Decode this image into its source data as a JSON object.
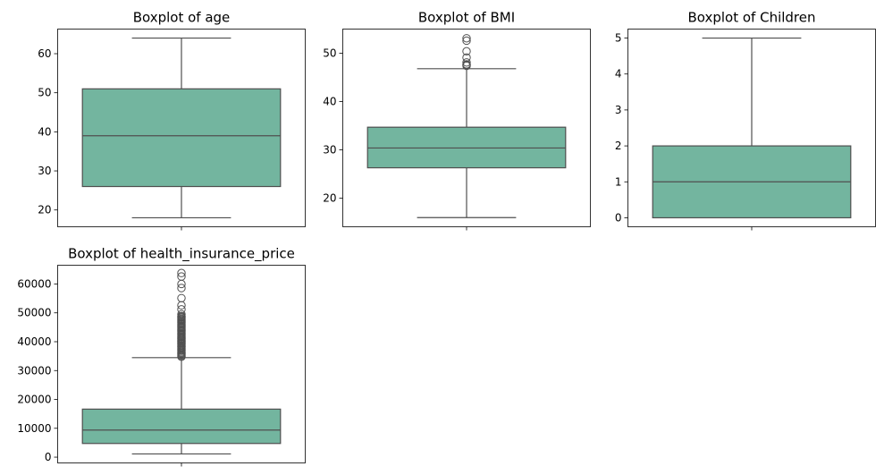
{
  "style": {
    "box_fill": "#73b59f",
    "line_color": "#4f4f4f",
    "axes_color": "#000000",
    "background": "#ffffff"
  },
  "chart_data": [
    {
      "type": "boxplot",
      "title": "Boxplot of age",
      "xlabel": "",
      "ylabel": "",
      "ylim": [
        15.7,
        66.3
      ],
      "yticks": [
        20,
        30,
        40,
        50,
        60
      ],
      "grid": false,
      "box": {
        "whisker_low": 18,
        "q1": 26,
        "median": 39,
        "q3": 51,
        "whisker_high": 64
      },
      "outliers": []
    },
    {
      "type": "boxplot",
      "title": "Boxplot of BMI",
      "xlabel": "",
      "ylabel": "",
      "ylim": [
        14.1,
        55.0
      ],
      "yticks": [
        20,
        30,
        40,
        50
      ],
      "grid": false,
      "box": {
        "whisker_low": 16.0,
        "q1": 26.3,
        "median": 30.4,
        "q3": 34.7,
        "whisker_high": 46.8
      },
      "outliers": [
        47.4,
        47.6,
        47.7,
        48.1,
        49.1,
        50.4,
        52.6,
        53.1
      ]
    },
    {
      "type": "boxplot",
      "title": "Boxplot of Children",
      "xlabel": "",
      "ylabel": "",
      "ylim": [
        -0.25,
        5.25
      ],
      "yticks": [
        0,
        1,
        2,
        3,
        4,
        5
      ],
      "grid": false,
      "box": {
        "whisker_low": 0,
        "q1": 0,
        "median": 1,
        "q3": 2,
        "whisker_high": 5
      },
      "outliers": []
    },
    {
      "type": "boxplot",
      "title": "Boxplot of health_insurance_price",
      "xlabel": "",
      "ylabel": "",
      "ylim": [
        -2000,
        66500
      ],
      "yticks": [
        0,
        10000,
        20000,
        30000,
        40000,
        50000,
        60000
      ],
      "grid": false,
      "box": {
        "whisker_low": 1122,
        "q1": 4740,
        "median": 9382,
        "q3": 16640,
        "whisker_high": 34472
      },
      "outliers": [
        34800,
        35100,
        35500,
        35900,
        36200,
        36600,
        37000,
        37300,
        37700,
        38100,
        38400,
        38800,
        39200,
        39500,
        39800,
        40200,
        40500,
        40900,
        41200,
        41600,
        41900,
        42300,
        42700,
        43000,
        43400,
        43800,
        44100,
        44400,
        44800,
        45100,
        45500,
        45900,
        46200,
        46600,
        46900,
        47300,
        47600,
        47900,
        48300,
        48600,
        48900,
        49500,
        51200,
        52600,
        55100,
        58600,
        60000,
        62600,
        63800
      ]
    }
  ]
}
